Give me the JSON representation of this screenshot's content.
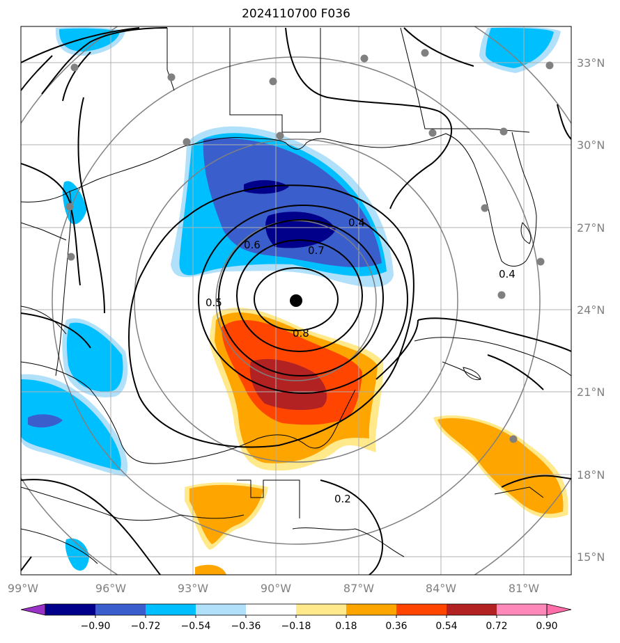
{
  "title": "2024110700 F036",
  "lon_labels": [
    "99°W",
    "96°W",
    "93°W",
    "90°W",
    "87°W",
    "84°W",
    "81°W"
  ],
  "lat_labels": [
    "33°N",
    "30°N",
    "27°N",
    "24°N",
    "21°N",
    "18°N",
    "15°N"
  ],
  "colorbar": {
    "labels": [
      "−0.90",
      "−0.72",
      "−0.54",
      "−0.36",
      "−0.18",
      "0.18",
      "0.36",
      "0.54",
      "0.72",
      "0.90"
    ],
    "colors": [
      "#9b32c8",
      "#00008b",
      "#3a5fcd",
      "#00bfff",
      "#b0e0fa",
      "#ffffff",
      "#ffe98a",
      "#ffa500",
      "#ff4500",
      "#b22222",
      "#ff88bb",
      "#ff6ea8"
    ]
  },
  "contour_labels": [
    "0.4",
    "0.6",
    "0.7",
    "0.5",
    "0.8",
    "0.4",
    "0.2"
  ],
  "storm_center_color": "#000000",
  "station_color": "#808080"
}
